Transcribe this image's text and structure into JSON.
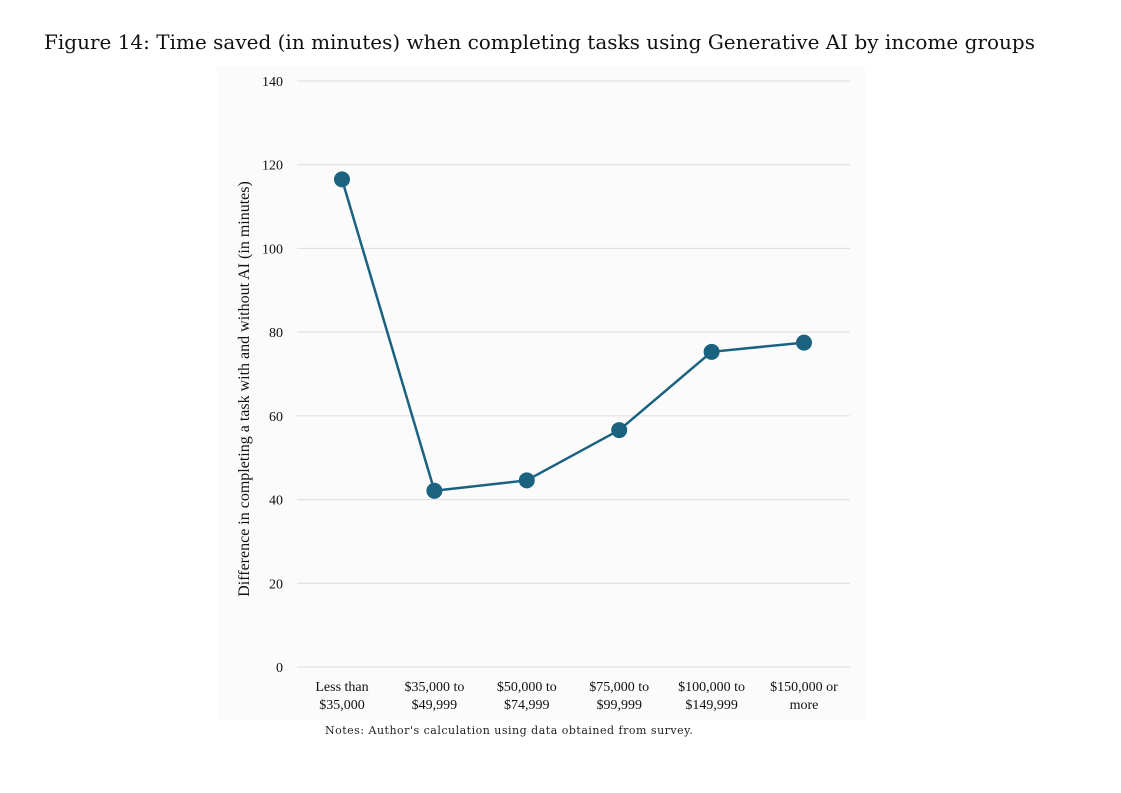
{
  "figure": {
    "caption": "Figure 14: Time saved (in minutes) when completing tasks using Generative AI by income groups",
    "notes": "Notes: Author's calculation using data obtained from survey."
  },
  "colors": {
    "series": "#1a6280",
    "grid": "#dcdcdc",
    "panel_background": "#fbfbfb"
  },
  "chart_data": {
    "type": "line",
    "title": "",
    "xlabel": "",
    "ylabel": "Difference in completing a task with and without AI (in minutes)",
    "categories": [
      [
        "Less than",
        "$35,000"
      ],
      [
        "$35,000 to",
        "$49,999"
      ],
      [
        "$50,000 to",
        "$74,999"
      ],
      [
        "$75,000 to",
        "$99,999"
      ],
      [
        "$100,000 to",
        "$149,999"
      ],
      [
        "$150,000 or",
        "more"
      ]
    ],
    "values": [
      116.5,
      42.1,
      44.6,
      56.6,
      75.3,
      77.5
    ],
    "ylim": [
      0,
      140
    ],
    "yticks": [
      0,
      20,
      40,
      60,
      80,
      100,
      120,
      140
    ],
    "grid": true,
    "legend": "none",
    "markers": true
  }
}
